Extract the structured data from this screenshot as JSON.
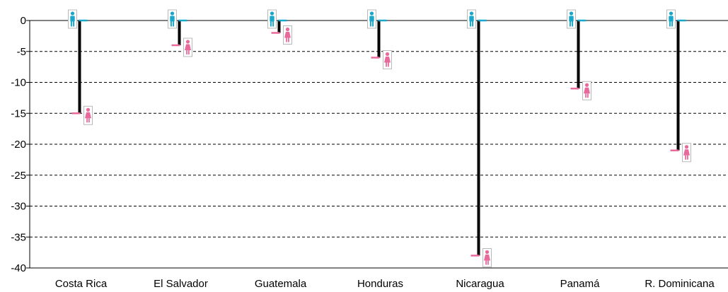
{
  "chart_data": {
    "type": "bar",
    "title": "",
    "xlabel": "",
    "ylabel": "",
    "ylim": [
      -40,
      0
    ],
    "yticks": [
      0,
      -5,
      -10,
      -15,
      -20,
      -25,
      -30,
      -35,
      -40
    ],
    "y_tick_labels": [
      "0",
      "-5",
      "-10",
      "-15",
      "-20",
      "-25",
      "-30",
      "-35",
      "-40"
    ],
    "grid": "dashed horizontal",
    "categories": [
      "Costa Rica",
      "El Salvador",
      "Guatemala",
      "Honduras",
      "Nicaragua",
      "Panamá",
      "R. Dominicana"
    ],
    "series": [
      {
        "values": [
          0,
          0,
          0,
          0,
          0,
          0,
          0
        ]
      },
      {
        "values": [
          -15,
          -4,
          -2,
          -6,
          -38,
          -11,
          -21
        ]
      }
    ],
    "colors": {
      "male_icon": "#19a8c9",
      "female_icon": "#e8699c",
      "connector": "#000000",
      "grid": "#000000"
    },
    "icons": {
      "male": "man-icon",
      "female": "woman-icon"
    }
  }
}
